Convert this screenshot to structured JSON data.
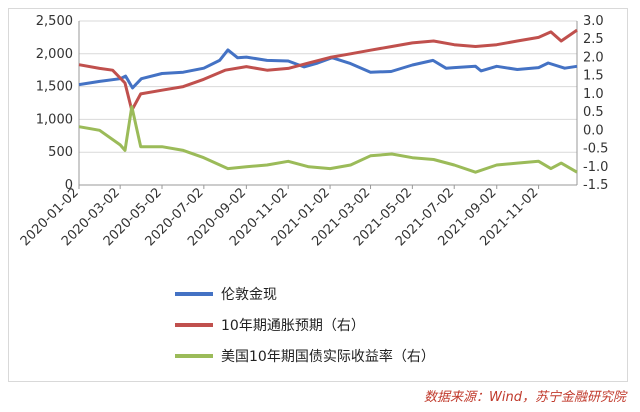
{
  "chart_data": {
    "type": "line",
    "title": "",
    "left_axis": {
      "ylim": [
        0,
        2500
      ],
      "ticks": [
        "0",
        "500",
        "1,000",
        "1,500",
        "2,000",
        "2,500"
      ]
    },
    "right_axis": {
      "ylim": [
        -1.5,
        3.0
      ],
      "ticks": [
        "-1.5",
        "-1.0",
        "-0.5",
        "0.0",
        "0.5",
        "1.0",
        "1.5",
        "2.0",
        "2.5",
        "3.0"
      ]
    },
    "x_tick_labels": [
      "2020-01-02",
      "2020-03-02",
      "2020-05-02",
      "2020-07-02",
      "2020-09-02",
      "2020-11-02",
      "2021-01-02",
      "2021-03-02",
      "2021-05-02",
      "2021-07-02",
      "2021-09-02",
      "2021-11-02"
    ],
    "grid": "horizontal",
    "legend_position": "bottom",
    "series": [
      {
        "name": "伦敦金现",
        "axis": "left",
        "color": "#4472c4",
        "points": [
          [
            "2020-01-02",
            1530
          ],
          [
            "2020-02-01",
            1580
          ],
          [
            "2020-03-02",
            1620
          ],
          [
            "2020-03-10",
            1660
          ],
          [
            "2020-03-20",
            1480
          ],
          [
            "2020-04-02",
            1620
          ],
          [
            "2020-05-02",
            1700
          ],
          [
            "2020-06-02",
            1720
          ],
          [
            "2020-07-02",
            1780
          ],
          [
            "2020-07-25",
            1900
          ],
          [
            "2020-08-06",
            2060
          ],
          [
            "2020-08-20",
            1940
          ],
          [
            "2020-09-02",
            1950
          ],
          [
            "2020-10-02",
            1900
          ],
          [
            "2020-11-02",
            1890
          ],
          [
            "2020-11-25",
            1800
          ],
          [
            "2020-12-15",
            1860
          ],
          [
            "2021-01-05",
            1940
          ],
          [
            "2021-02-01",
            1850
          ],
          [
            "2021-03-02",
            1720
          ],
          [
            "2021-04-01",
            1730
          ],
          [
            "2021-05-02",
            1830
          ],
          [
            "2021-06-01",
            1900
          ],
          [
            "2021-06-20",
            1780
          ],
          [
            "2021-07-02",
            1790
          ],
          [
            "2021-08-02",
            1810
          ],
          [
            "2021-08-10",
            1740
          ],
          [
            "2021-09-02",
            1810
          ],
          [
            "2021-10-02",
            1760
          ],
          [
            "2021-11-02",
            1790
          ],
          [
            "2021-11-16",
            1860
          ],
          [
            "2021-12-10",
            1780
          ],
          [
            "2021-12-28",
            1810
          ]
        ]
      },
      {
        "name": "10年期通胀预期（右）",
        "axis": "right",
        "color": "#c0504d",
        "points": [
          [
            "2020-01-02",
            1.8
          ],
          [
            "2020-02-01",
            1.7
          ],
          [
            "2020-02-20",
            1.65
          ],
          [
            "2020-03-09",
            1.3
          ],
          [
            "2020-03-19",
            0.55
          ],
          [
            "2020-04-01",
            1.0
          ],
          [
            "2020-05-02",
            1.1
          ],
          [
            "2020-06-02",
            1.2
          ],
          [
            "2020-07-02",
            1.4
          ],
          [
            "2020-08-02",
            1.65
          ],
          [
            "2020-09-02",
            1.75
          ],
          [
            "2020-10-02",
            1.65
          ],
          [
            "2020-11-02",
            1.7
          ],
          [
            "2020-12-02",
            1.85
          ],
          [
            "2021-01-02",
            2.0
          ],
          [
            "2021-02-01",
            2.1
          ],
          [
            "2021-03-02",
            2.2
          ],
          [
            "2021-04-02",
            2.3
          ],
          [
            "2021-05-02",
            2.4
          ],
          [
            "2021-06-02",
            2.45
          ],
          [
            "2021-07-02",
            2.35
          ],
          [
            "2021-08-02",
            2.3
          ],
          [
            "2021-09-02",
            2.35
          ],
          [
            "2021-10-02",
            2.45
          ],
          [
            "2021-11-02",
            2.55
          ],
          [
            "2021-11-20",
            2.7
          ],
          [
            "2021-12-05",
            2.45
          ],
          [
            "2021-12-28",
            2.75
          ]
        ]
      },
      {
        "name": "美国10年期国债实际收益率（右）",
        "axis": "right",
        "color": "#9bbb59",
        "points": [
          [
            "2020-01-02",
            0.1
          ],
          [
            "2020-02-01",
            0.0
          ],
          [
            "2020-03-02",
            -0.4
          ],
          [
            "2020-03-09",
            -0.55
          ],
          [
            "2020-03-19",
            0.65
          ],
          [
            "2020-04-01",
            -0.45
          ],
          [
            "2020-05-02",
            -0.45
          ],
          [
            "2020-06-02",
            -0.55
          ],
          [
            "2020-07-02",
            -0.75
          ],
          [
            "2020-08-06",
            -1.05
          ],
          [
            "2020-09-02",
            -1.0
          ],
          [
            "2020-10-02",
            -0.95
          ],
          [
            "2020-11-02",
            -0.85
          ],
          [
            "2020-12-02",
            -1.0
          ],
          [
            "2021-01-02",
            -1.05
          ],
          [
            "2021-02-01",
            -0.95
          ],
          [
            "2021-03-02",
            -0.7
          ],
          [
            "2021-04-02",
            -0.65
          ],
          [
            "2021-05-02",
            -0.75
          ],
          [
            "2021-06-02",
            -0.8
          ],
          [
            "2021-07-02",
            -0.95
          ],
          [
            "2021-08-02",
            -1.15
          ],
          [
            "2021-09-02",
            -0.95
          ],
          [
            "2021-10-02",
            -0.9
          ],
          [
            "2021-11-02",
            -0.85
          ],
          [
            "2021-11-20",
            -1.05
          ],
          [
            "2021-12-05",
            -0.9
          ],
          [
            "2021-12-28",
            -1.15
          ]
        ]
      }
    ]
  },
  "source": "数据来源：Wind，苏宁金融研究院"
}
